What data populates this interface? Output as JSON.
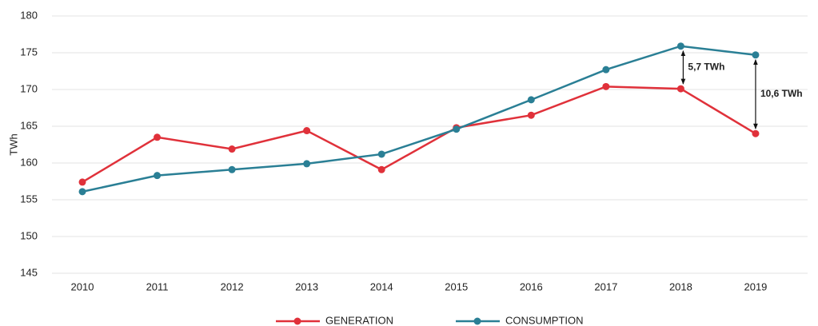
{
  "chart_data": {
    "type": "line",
    "y_label": "TWh",
    "categories": [
      "2010",
      "2011",
      "2012",
      "2013",
      "2014",
      "2015",
      "2016",
      "2017",
      "2018",
      "2019"
    ],
    "series": [
      {
        "name": "GENERATION",
        "color": "#e0313a",
        "values": [
          157.4,
          163.5,
          161.9,
          164.4,
          159.1,
          164.8,
          166.5,
          170.4,
          170.1,
          164.0
        ]
      },
      {
        "name": "CONSUMPTION",
        "color": "#2a7f95",
        "values": [
          156.1,
          158.3,
          159.1,
          159.9,
          161.2,
          164.6,
          168.6,
          172.7,
          175.9,
          174.7
        ]
      }
    ],
    "annotations": [
      "5,7 TWh",
      "10,6 TWh"
    ],
    "ylim": [
      145,
      180
    ],
    "yticks": [
      145,
      150,
      155,
      160,
      165,
      170,
      175,
      180
    ],
    "grid": true,
    "legend": "bottom"
  }
}
